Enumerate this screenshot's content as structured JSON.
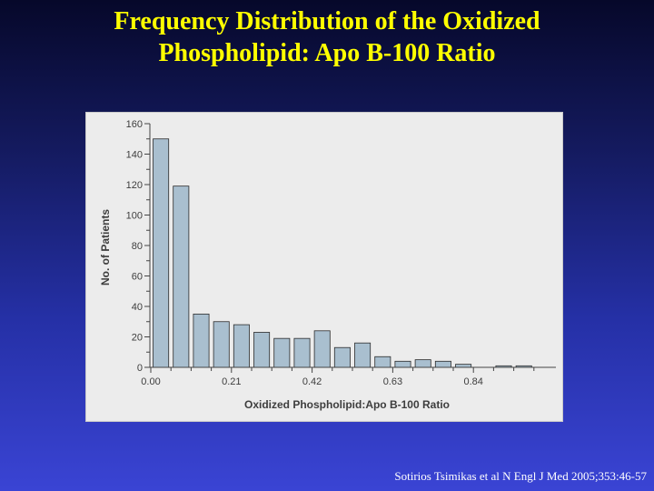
{
  "slide": {
    "title_line1": "Frequency Distribution of the Oxidized",
    "title_line2": "Phospholipid: Apo B-100 Ratio",
    "citation": "Sotirios Tsimikas et al N Engl J Med 2005;353:46-57"
  },
  "colors": {
    "bar_fill": "#a9bfcf",
    "bar_stroke": "#2b2b2b",
    "title": "#ffff00",
    "panel": "#ececec"
  },
  "chart_data": {
    "type": "bar",
    "xlabel": "Oxidized Phospholipid:Apo B-100 Ratio",
    "ylabel": "No. of Patients",
    "ylim": [
      0,
      160
    ],
    "xlim": [
      0,
      1.05
    ],
    "bin_width": 0.0525,
    "yticks": [
      0,
      20,
      40,
      60,
      80,
      100,
      120,
      140,
      160
    ],
    "xticks": [
      "0.00",
      "0.21",
      "0.42",
      "0.63",
      "0.84"
    ],
    "xtick_values": [
      0,
      0.21,
      0.42,
      0.63,
      0.84
    ],
    "bin_starts": [
      0,
      0.0525,
      0.105,
      0.1575,
      0.21,
      0.2625,
      0.315,
      0.3675,
      0.42,
      0.4725,
      0.525,
      0.5775,
      0.63,
      0.6825,
      0.735,
      0.7875,
      0.84,
      0.8925,
      0.945
    ],
    "values": [
      150,
      119,
      35,
      30,
      28,
      23,
      19,
      19,
      24,
      13,
      16,
      7,
      4,
      5,
      4,
      2,
      0,
      1,
      1
    ],
    "grid": false,
    "legend": "none"
  }
}
